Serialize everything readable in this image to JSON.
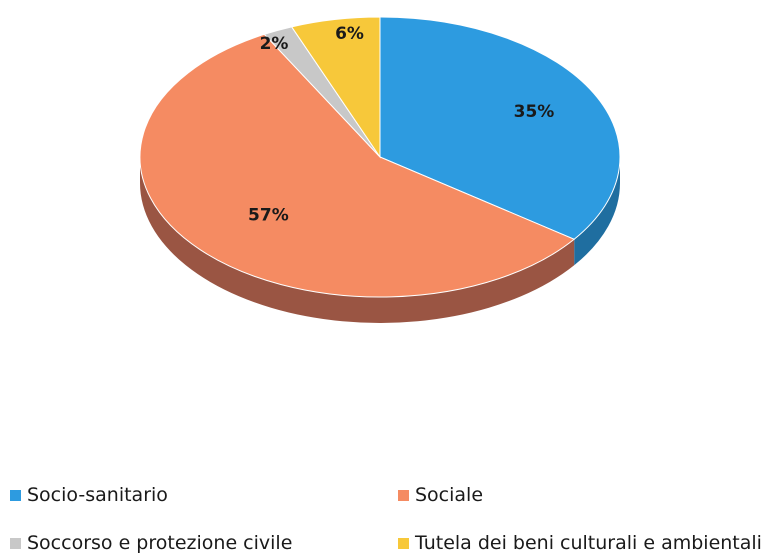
{
  "chart_data": {
    "type": "pie",
    "title": "",
    "slices": [
      {
        "label": "Socio-sanitario",
        "value": 35,
        "display": "35%",
        "color": "#2d9be0",
        "side_color": "#1f6ea0"
      },
      {
        "label": "Sociale",
        "value": 57,
        "display": "57%",
        "color": "#f58b62",
        "side_color": "#9a5543"
      },
      {
        "label": "Soccorso e protezione civile",
        "value": 2,
        "display": "2%",
        "color": "#c8c8c8",
        "side_color": "#8a8a8a"
      },
      {
        "label": "Tutela dei beni culturali e ambientali",
        "value": 6,
        "display": "6%",
        "color": "#f7c83a",
        "side_color": "#a88724"
      }
    ],
    "legend_position": "bottom",
    "style": "3d"
  }
}
